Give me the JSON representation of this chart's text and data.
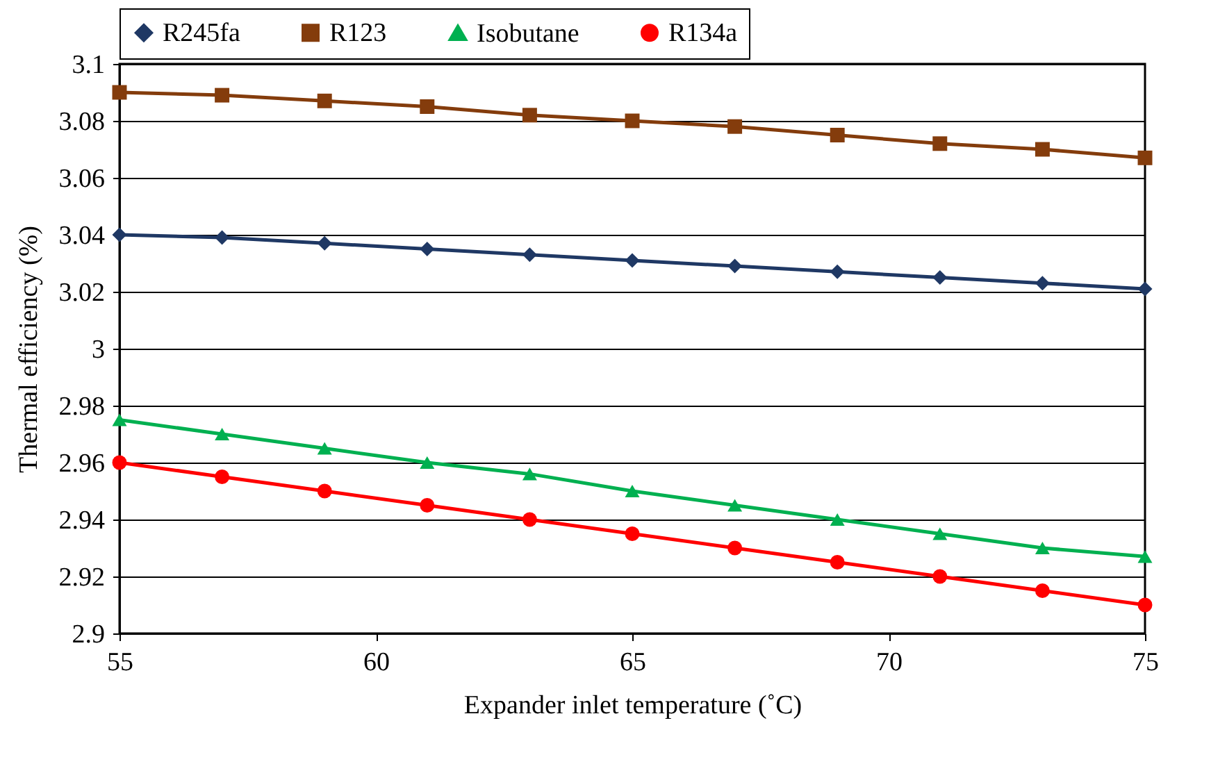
{
  "chart_data": {
    "type": "line",
    "xlabel": "Expander inlet temperature (˚C)",
    "ylabel": "Thermal efficiency (%)",
    "x": [
      55,
      57,
      59,
      61,
      63,
      65,
      67,
      69,
      71,
      73,
      75
    ],
    "series": [
      {
        "name": "R245fa",
        "color": "#1f3864",
        "marker": "diamond",
        "values": [
          3.04,
          3.039,
          3.037,
          3.035,
          3.033,
          3.031,
          3.029,
          3.027,
          3.025,
          3.023,
          3.021
        ]
      },
      {
        "name": "R123",
        "color": "#843c0c",
        "marker": "square",
        "values": [
          3.09,
          3.089,
          3.087,
          3.085,
          3.082,
          3.08,
          3.078,
          3.075,
          3.072,
          3.07,
          3.067
        ]
      },
      {
        "name": "Isobutane",
        "color": "#00b050",
        "marker": "triangle",
        "values": [
          2.975,
          2.97,
          2.965,
          2.96,
          2.956,
          2.95,
          2.945,
          2.94,
          2.935,
          2.93,
          2.927
        ]
      },
      {
        "name": "R134a",
        "color": "#ff0000",
        "marker": "circle",
        "values": [
          2.96,
          2.955,
          2.95,
          2.945,
          2.94,
          2.935,
          2.93,
          2.925,
          2.92,
          2.915,
          2.91
        ]
      }
    ],
    "xlim": [
      55,
      75
    ],
    "xticks": [
      55,
      60,
      65,
      70,
      75
    ],
    "ylim": [
      2.9,
      3.1
    ],
    "yticks": [
      2.9,
      2.92,
      2.94,
      2.96,
      2.98,
      3,
      3.02,
      3.04,
      3.06,
      3.08,
      3.1
    ],
    "grid": "y",
    "legend": "top",
    "line_style": "solid"
  }
}
